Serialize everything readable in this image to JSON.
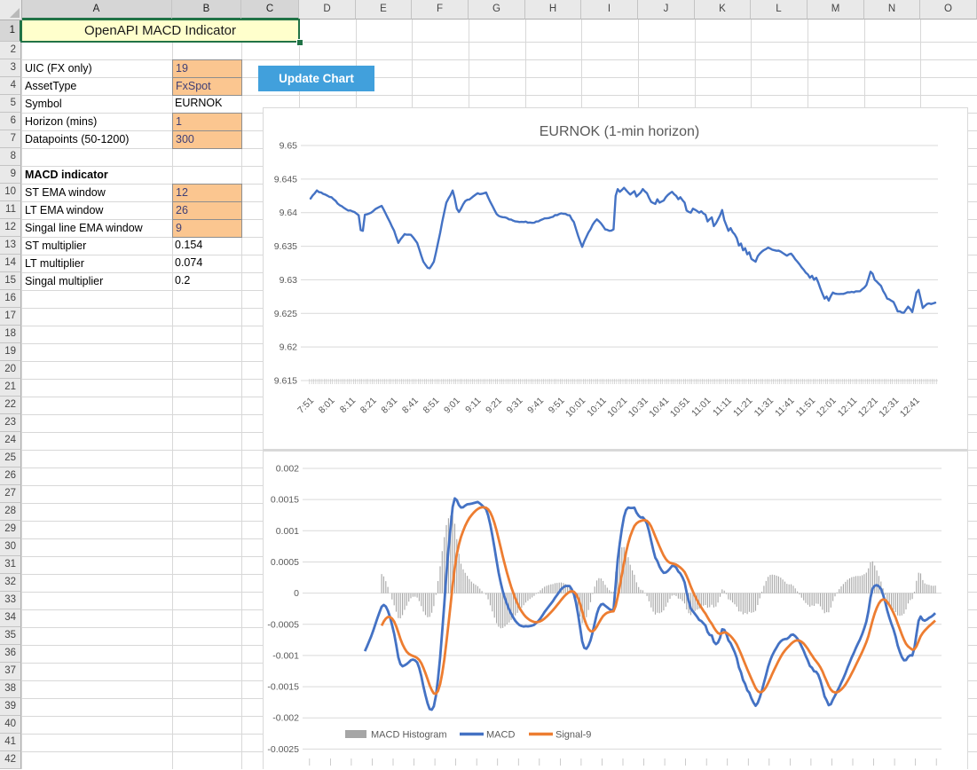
{
  "sheet": {
    "title": "OpenAPI MACD Indicator",
    "button_label": "Update Chart",
    "column_headers": [
      "A",
      "B",
      "C",
      "D",
      "E",
      "F",
      "G",
      "H",
      "I",
      "J",
      "K",
      "L",
      "M",
      "N",
      "O"
    ],
    "row_count": 42,
    "selection": {
      "range": "A1:C1",
      "columns": [
        "A",
        "B",
        "C"
      ],
      "rows": [
        1
      ]
    },
    "fields": [
      {
        "row": 3,
        "label": "UIC (FX only)",
        "value": "19",
        "input": true,
        "bold": false
      },
      {
        "row": 4,
        "label": "AssetType",
        "value": "FxSpot",
        "input": true,
        "bold": false
      },
      {
        "row": 5,
        "label": "Symbol",
        "value": "EURNOK",
        "input": false,
        "bold": false
      },
      {
        "row": 6,
        "label": "Horizon (mins)",
        "value": "1",
        "input": true,
        "bold": false
      },
      {
        "row": 7,
        "label": "Datapoints (50-1200)",
        "value": "300",
        "input": true,
        "bold": false
      },
      {
        "row": 9,
        "label": "MACD indicator",
        "value": "",
        "input": false,
        "bold": true
      },
      {
        "row": 10,
        "label": "ST EMA window",
        "value": "12",
        "input": true,
        "bold": false
      },
      {
        "row": 11,
        "label": "LT EMA window",
        "value": "26",
        "input": true,
        "bold": false
      },
      {
        "row": 12,
        "label": "Singal line EMA window",
        "value": "9",
        "input": true,
        "bold": false
      },
      {
        "row": 13,
        "label": "ST multiplier",
        "value": "0.154",
        "input": false,
        "bold": false
      },
      {
        "row": 14,
        "label": "LT multiplier",
        "value": "0.074",
        "input": false,
        "bold": false
      },
      {
        "row": 15,
        "label": "Singal multiplier",
        "value": "0.2",
        "input": false,
        "bold": false
      }
    ]
  },
  "colors": {
    "macd_line": "#4472C4",
    "signal_line": "#ED7D31",
    "histogram": "#a6a6a6",
    "button": "#41a0dc",
    "input_fill": "#fbc690",
    "selection_green": "#217346",
    "chart_grid": "#d9d9d9",
    "axis_text": "#595959"
  },
  "chart_data": [
    {
      "type": "line",
      "title": "EURNOK (1-min horizon)",
      "ylim": [
        9.615,
        9.65
      ],
      "y_tick_labels": [
        "9.65",
        "9.645",
        "9.64",
        "9.635",
        "9.63",
        "9.625",
        "9.62",
        "9.615"
      ],
      "n_points": 300,
      "x_interval_minutes": 1,
      "x_tick_labels": [
        "7:51",
        "8:01",
        "8:11",
        "8:21",
        "8:31",
        "8:41",
        "8:51",
        "9:01",
        "9:11",
        "9:21",
        "9:31",
        "9:41",
        "9:51",
        "10:01",
        "10:11",
        "10:21",
        "10:31",
        "10:41",
        "10:51",
        "11:01",
        "11:11",
        "11:21",
        "11:31",
        "11:41",
        "11:51",
        "12:01",
        "12:11",
        "12:21",
        "12:31",
        "12:41"
      ],
      "points_per_x_tick": 10,
      "series": [
        {
          "name": "EURNOK",
          "color": "#4472C4",
          "keypoints": [
            [
              0,
              9.6421
            ],
            [
              3,
              9.6433
            ],
            [
              6,
              9.6428
            ],
            [
              10,
              9.6423
            ],
            [
              14,
              9.6411
            ],
            [
              17,
              9.6405
            ],
            [
              21,
              9.6401
            ],
            [
              23,
              9.6396
            ],
            [
              24,
              9.6374
            ],
            [
              25,
              9.6373
            ],
            [
              26,
              9.6397
            ],
            [
              29,
              9.64
            ],
            [
              32,
              9.6407
            ],
            [
              34,
              9.641
            ],
            [
              37,
              9.6392
            ],
            [
              40,
              9.6373
            ],
            [
              42,
              9.6355
            ],
            [
              43,
              9.636
            ],
            [
              45,
              9.6368
            ],
            [
              48,
              9.6367
            ],
            [
              51,
              9.6355
            ],
            [
              54,
              9.6327
            ],
            [
              56,
              9.6318
            ],
            [
              57,
              9.6317
            ],
            [
              59,
              9.6327
            ],
            [
              61,
              9.6355
            ],
            [
              63,
              9.6386
            ],
            [
              65,
              9.6415
            ],
            [
              68,
              9.6433
            ],
            [
              69,
              9.6421
            ],
            [
              70,
              9.6406
            ],
            [
              71,
              9.6401
            ],
            [
              74,
              9.6417
            ],
            [
              77,
              9.6422
            ],
            [
              80,
              9.6429
            ],
            [
              82,
              9.6428
            ],
            [
              84,
              9.643
            ],
            [
              86,
              9.6416
            ],
            [
              89,
              9.6398
            ],
            [
              91,
              9.6394
            ],
            [
              94,
              9.6392
            ],
            [
              98,
              9.6387
            ],
            [
              102,
              9.6386
            ],
            [
              107,
              9.6385
            ],
            [
              111,
              9.639
            ],
            [
              115,
              9.6393
            ],
            [
              120,
              9.6399
            ],
            [
              124,
              9.6396
            ],
            [
              126,
              9.6386
            ],
            [
              128,
              9.6366
            ],
            [
              130,
              9.6349
            ],
            [
              132,
              9.6364
            ],
            [
              135,
              9.6382
            ],
            [
              137,
              9.639
            ],
            [
              139,
              9.6384
            ],
            [
              141,
              9.6375
            ],
            [
              143,
              9.6373
            ],
            [
              145,
              9.6375
            ],
            [
              146,
              9.6425
            ],
            [
              147,
              9.6435
            ],
            [
              148,
              9.6431
            ],
            [
              150,
              9.6437
            ],
            [
              152,
              9.643
            ],
            [
              153,
              9.6427
            ],
            [
              155,
              9.6432
            ],
            [
              156,
              9.6424
            ],
            [
              158,
              9.643
            ],
            [
              159,
              9.6435
            ],
            [
              161,
              9.6429
            ],
            [
              163,
              9.6416
            ],
            [
              165,
              9.6413
            ],
            [
              166,
              9.642
            ],
            [
              167,
              9.6415
            ],
            [
              169,
              9.6418
            ],
            [
              170,
              9.6423
            ],
            [
              172,
              9.6429
            ],
            [
              173,
              9.6431
            ],
            [
              175,
              9.6425
            ],
            [
              176,
              9.642
            ],
            [
              177,
              9.6423
            ],
            [
              179,
              9.6415
            ],
            [
              180,
              9.6403
            ],
            [
              182,
              9.64
            ],
            [
              183,
              9.6406
            ],
            [
              186,
              9.64
            ],
            [
              187,
              9.6402
            ],
            [
              189,
              9.6397
            ],
            [
              190,
              9.6387
            ],
            [
              192,
              9.6393
            ],
            [
              193,
              9.638
            ],
            [
              194,
              9.6384
            ],
            [
              196,
              9.6396
            ],
            [
              197,
              9.6404
            ],
            [
              198,
              9.6389
            ],
            [
              200,
              9.6373
            ],
            [
              201,
              9.6377
            ],
            [
              204,
              9.6362
            ],
            [
              205,
              9.6351
            ],
            [
              206,
              9.6354
            ],
            [
              207,
              9.6344
            ],
            [
              208,
              9.6347
            ],
            [
              209,
              9.6338
            ],
            [
              210,
              9.6341
            ],
            [
              211,
              9.6331
            ],
            [
              213,
              9.6327
            ],
            [
              214,
              9.6335
            ],
            [
              216,
              9.6342
            ],
            [
              219,
              9.6348
            ],
            [
              222,
              9.6344
            ],
            [
              225,
              9.6342
            ],
            [
              228,
              9.6336
            ],
            [
              230,
              9.6339
            ],
            [
              233,
              9.6327
            ],
            [
              236,
              9.6315
            ],
            [
              239,
              9.6303
            ],
            [
              240,
              9.6306
            ],
            [
              241,
              9.63
            ],
            [
              242,
              9.6303
            ],
            [
              243,
              9.6296
            ],
            [
              245,
              9.6279
            ],
            [
              246,
              9.6272
            ],
            [
              247,
              9.6275
            ],
            [
              248,
              9.6269
            ],
            [
              249,
              9.6276
            ],
            [
              250,
              9.6281
            ],
            [
              252,
              9.6279
            ],
            [
              254,
              9.6279
            ],
            [
              259,
              9.6282
            ],
            [
              263,
              9.6283
            ],
            [
              266,
              9.6292
            ],
            [
              268,
              9.6312
            ],
            [
              269,
              9.6309
            ],
            [
              270,
              9.63
            ],
            [
              273,
              9.6291
            ],
            [
              276,
              9.6272
            ],
            [
              279,
              9.6267
            ],
            [
              281,
              9.6253
            ],
            [
              284,
              9.6251
            ],
            [
              286,
              9.626
            ],
            [
              288,
              9.6252
            ],
            [
              290,
              9.6281
            ],
            [
              291,
              9.6285
            ],
            [
              293,
              9.6258
            ],
            [
              295,
              9.6264
            ],
            [
              297,
              9.6264
            ],
            [
              299,
              9.6266
            ]
          ]
        }
      ]
    },
    {
      "type": "macd-composite",
      "title": "",
      "ylim": [
        -0.0025,
        0.002
      ],
      "y_tick_labels": [
        "0.002",
        "0.0015",
        "0.001",
        "0.0005",
        "0",
        "-0.0005",
        "-0.001",
        "-0.0015",
        "-0.002",
        "-0.0025"
      ],
      "legend": [
        "MACD Histogram",
        "MACD",
        "Signal-9"
      ],
      "derived_from_series": "EURNOK",
      "params": {
        "st_window": 12,
        "lt_window": 26,
        "signal_window": 9,
        "st_multiplier": 0.154,
        "lt_multiplier": 0.074,
        "signal_multiplier": 0.2,
        "macd_plot_start_index": 26,
        "signal_plot_start_index": 34
      },
      "series_colors": {
        "histogram": "#a6a6a6",
        "macd": "#4472C4",
        "signal": "#ED7D31"
      }
    }
  ]
}
